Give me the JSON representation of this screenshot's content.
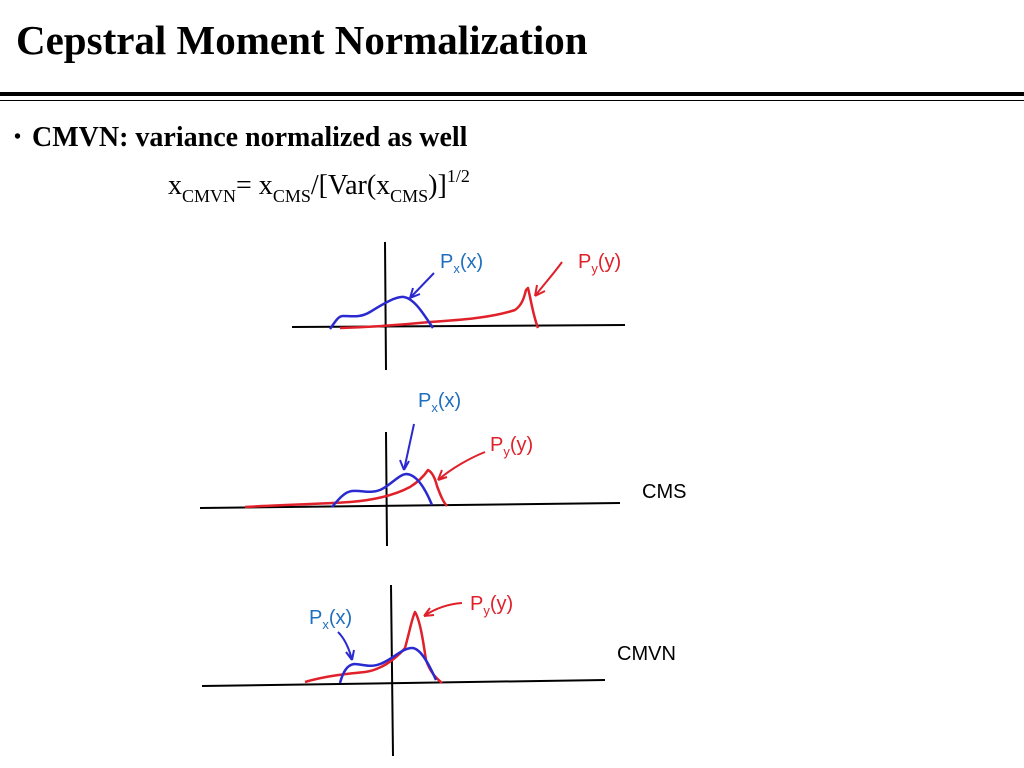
{
  "slide": {
    "title": "Cepstral Moment Normalization",
    "bullet": "CMVN: variance normalized as well",
    "formula": {
      "x": "x",
      "cmvn_sub": "CMVN",
      "eq": "= x",
      "cms_sub": "CMS",
      "slash_var": "/[Var(x",
      "cms_sub2": "CMS",
      "close": ")]",
      "exp": "1/2"
    }
  },
  "colors": {
    "px_curve": "#2a2ad0",
    "py_curve": "#e0202a",
    "px_label": "#1f6fbf",
    "py_label": "#e0202a",
    "axes": "#000000"
  },
  "panels": [
    {
      "px_label": "P",
      "px_sub": "x",
      "px_arg": "(x)",
      "py_label": "P",
      "py_sub": "y",
      "py_arg": "(y)",
      "side_label": ""
    },
    {
      "px_label": "P",
      "px_sub": "x",
      "px_arg": "(x)",
      "py_label": "P",
      "py_sub": "y",
      "py_arg": "(y)",
      "side_label": "CMS"
    },
    {
      "px_label": "P",
      "px_sub": "x",
      "px_arg": "(x)",
      "py_label": "P",
      "py_sub": "y",
      "py_arg": "(y)",
      "side_label": "CMVN"
    }
  ]
}
